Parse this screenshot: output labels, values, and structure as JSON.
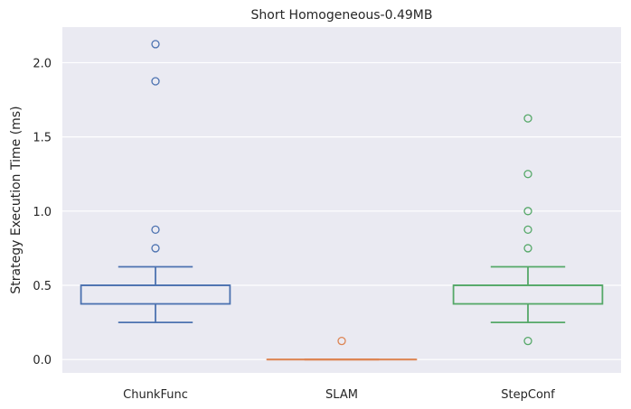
{
  "chart_data": {
    "type": "box",
    "title": "Short Homogeneous-0.49MB",
    "xlabel": "",
    "ylabel": "Strategy Execution Time (ms)",
    "ylim": [
      -0.09,
      2.24
    ],
    "yticks": [
      0.0,
      0.5,
      1.0,
      1.5,
      2.0
    ],
    "ytick_labels": [
      "0.0",
      "0.5",
      "1.0",
      "1.5",
      "2.0"
    ],
    "grid": true,
    "categories": [
      "ChunkFunc",
      "SLAM",
      "StepConf"
    ],
    "colors": [
      "#4c72b0",
      "#dd8452",
      "#55a868"
    ],
    "background": "#eaeaf2",
    "series": [
      {
        "whisker_low": 0.25,
        "q1": 0.375,
        "median": 0.5,
        "q3": 0.5,
        "whisker_high": 0.625,
        "outliers": [
          0.75,
          0.875,
          1.875,
          2.125
        ]
      },
      {
        "whisker_low": 0.0,
        "q1": 0.0,
        "median": 0.0,
        "q3": 0.0,
        "whisker_high": 0.0,
        "outliers": [
          0.125
        ]
      },
      {
        "whisker_low": 0.25,
        "q1": 0.375,
        "median": 0.5,
        "q3": 0.5,
        "whisker_high": 0.625,
        "outliers": [
          0.125,
          0.75,
          0.875,
          1.0,
          1.25,
          1.625
        ]
      }
    ]
  }
}
